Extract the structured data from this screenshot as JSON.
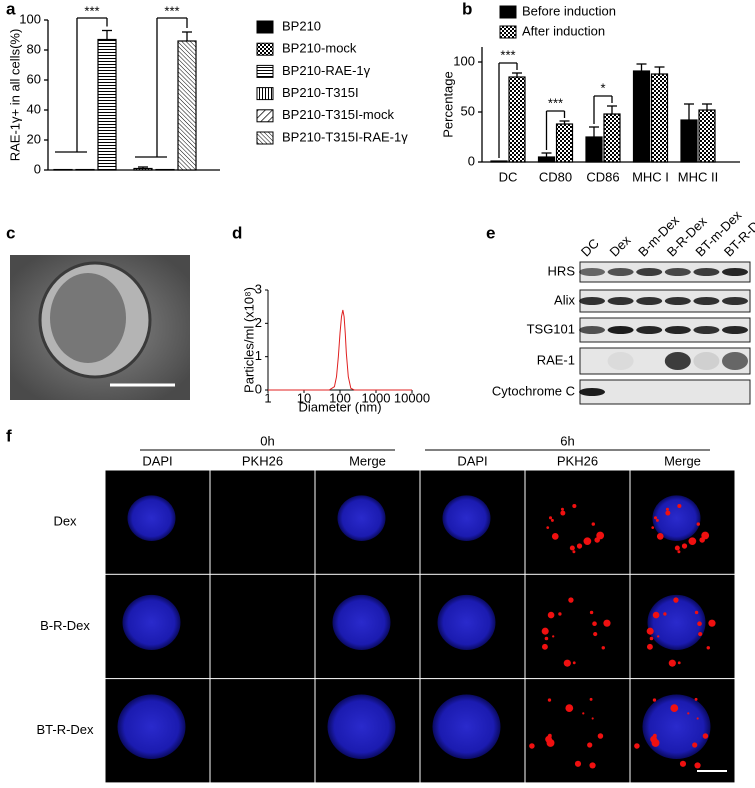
{
  "chart_data": [
    {
      "type": "bar",
      "panel": "a",
      "ylabel": "RAE-1γ+ in all cells(%)",
      "categories": [
        "BP210",
        "BP210-mock",
        "BP210-RAE-1γ",
        "BP210-T315I",
        "BP210-T315I-mock",
        "BP210-T315I-RAE-1γ"
      ],
      "values": [
        0.3,
        0.3,
        87,
        1,
        0.3,
        86
      ],
      "errors": [
        0,
        0,
        6,
        1,
        0,
        6
      ],
      "patterns": [
        "solid",
        "checker",
        "hlines",
        "vlines",
        "diag-sparse",
        "diag-dense"
      ],
      "color": "#000000",
      "ylim": [
        0,
        100
      ],
      "yticks": [
        0,
        20,
        40,
        60,
        80,
        100
      ],
      "annotations": [
        {
          "text": "***",
          "from": 0,
          "to": 2
        },
        {
          "text": "***",
          "from": 3,
          "to": 5
        }
      ]
    },
    {
      "type": "grouped-bar",
      "panel": "b",
      "ylabel": "Percentage",
      "categories": [
        "DC",
        "CD80",
        "CD86",
        "MHC I",
        "MHC II"
      ],
      "series": [
        {
          "name": "Before induction",
          "color": "#000000",
          "pattern": "solid",
          "values": [
            1,
            5,
            25,
            91,
            42
          ],
          "errors": [
            0,
            4,
            10,
            7,
            16
          ]
        },
        {
          "name": "After induction",
          "color": "#000000",
          "pattern": "checker",
          "values": [
            85,
            38,
            48,
            88,
            52
          ],
          "errors": [
            4,
            3,
            8,
            7,
            6
          ]
        }
      ],
      "ylim": [
        0,
        115
      ],
      "yticks": [
        0,
        50,
        100
      ],
      "annotations": [
        {
          "text": "***",
          "category": 0
        },
        {
          "text": "***",
          "category": 1
        },
        {
          "text": "*",
          "category": 2
        }
      ]
    },
    {
      "type": "line",
      "panel": "d",
      "ylabel": "Particles/ml (x10⁸)",
      "xlabel": "Diameter (nm)",
      "xscale": "log",
      "x": [
        1,
        50,
        70,
        80,
        90,
        100,
        110,
        120,
        130,
        140,
        150,
        170,
        200,
        250,
        10000
      ],
      "values": [
        0,
        0,
        0.1,
        0.4,
        1.0,
        1.7,
        2.2,
        2.4,
        2.2,
        1.7,
        1.1,
        0.4,
        0.05,
        0,
        0
      ],
      "color": "#e02020",
      "xlim": [
        1,
        10000
      ],
      "xticks": [
        1,
        10,
        100,
        1000,
        10000
      ],
      "ylim": [
        0,
        3
      ],
      "yticks": [
        0,
        1,
        2,
        3
      ]
    }
  ],
  "panel_c": {
    "label": "c"
  },
  "western_blot": {
    "label": "e",
    "lanes": [
      "DC",
      "Dex",
      "B-m-Dex",
      "B-R-Dex",
      "BT-m-Dex",
      "BT-R-Dex"
    ],
    "proteins": [
      "HRS",
      "Alix",
      "TSG101",
      "RAE-1",
      "Cytochrome C"
    ]
  },
  "microscopy": {
    "label": "f",
    "timepoints": [
      "0h",
      "6h"
    ],
    "channels": [
      "DAPI",
      "PKH26",
      "Merge"
    ],
    "rows": [
      "Dex",
      "B-R-Dex",
      "BT-R-Dex"
    ]
  }
}
